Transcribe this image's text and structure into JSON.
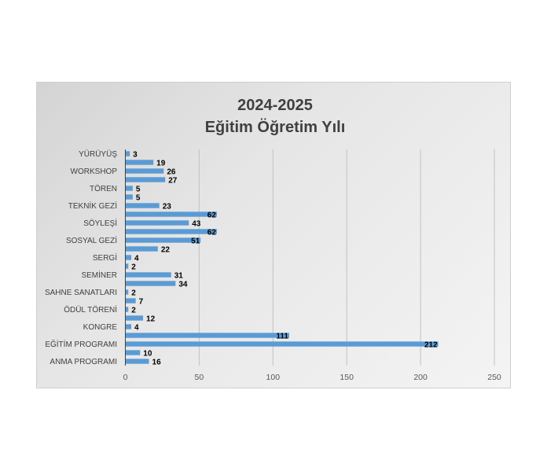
{
  "chart_data": {
    "type": "bar",
    "orientation": "horizontal",
    "title": "2024-2025",
    "subtitle": "Eğitim Öğretim Yılı",
    "bar_color": "#5b9bd5",
    "xlim": [
      0,
      250
    ],
    "x_ticks": [
      0,
      50,
      100,
      150,
      200,
      250
    ],
    "grid": true,
    "legend": "none",
    "categories": [
      "YÜRÜYÜŞ",
      "",
      "WORKSHOP",
      "",
      "TÖREN",
      "",
      "TEKNİK GEZİ",
      "",
      "SÖYLEŞİ",
      "",
      "SOSYAL GEZİ",
      "",
      "SERGİ",
      "",
      "SEMİNER",
      "",
      "SAHNE SANATLARI",
      "",
      "ÖDÜL TÖRENİ",
      "",
      "KONGRE",
      "",
      "EĞİTİM PROGRAMI",
      "",
      "ANMA PROGRAMI"
    ],
    "values": [
      3,
      19,
      26,
      27,
      5,
      5,
      23,
      62,
      43,
      62,
      51,
      22,
      4,
      2,
      31,
      34,
      2,
      7,
      2,
      12,
      4,
      111,
      212,
      10,
      16
    ]
  }
}
